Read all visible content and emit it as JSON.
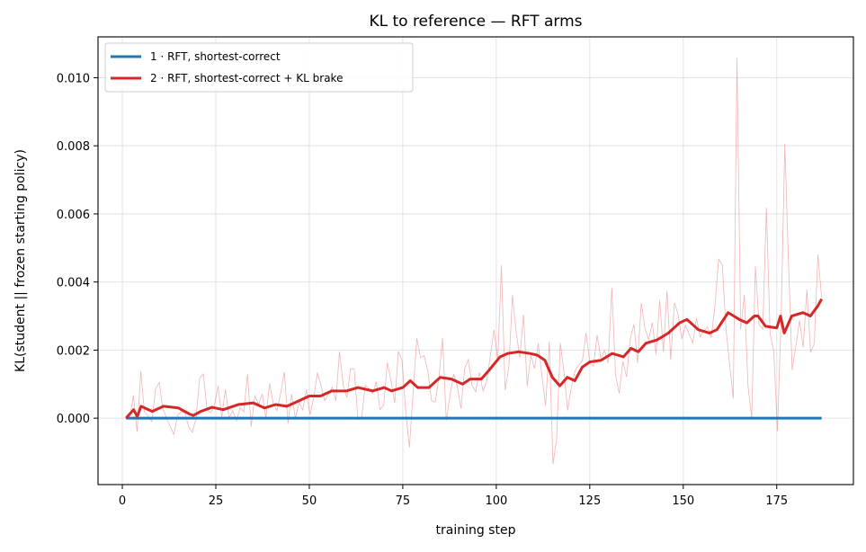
{
  "chart_data": {
    "type": "line",
    "title": "KL to reference — RFT arms",
    "xlabel": "training step",
    "ylabel": "KL(student || frozen starting policy)",
    "xlim": [
      -6.5,
      195.5
    ],
    "ylim": [
      -0.00195,
      0.0112
    ],
    "xticks": [
      0,
      25,
      50,
      75,
      100,
      125,
      150,
      175
    ],
    "xtick_labels": [
      "0",
      "25",
      "50",
      "75",
      "100",
      "125",
      "150",
      "175"
    ],
    "yticks": [
      0.0,
      0.002,
      0.004,
      0.006,
      0.008,
      0.01
    ],
    "ytick_labels": [
      "0.000",
      "0.002",
      "0.004",
      "0.006",
      "0.008",
      "0.010"
    ],
    "grid": true,
    "legend_position": "top-left",
    "series": [
      {
        "name": "1 · RFT, shortest-correct",
        "color": "#1f77b4",
        "x_start": 1,
        "x_end": 187,
        "values": [
          0,
          0
        ]
      },
      {
        "name": "2 · RFT, shortest-correct + KL brake",
        "color": "#d62728",
        "raw_color": "#d62728",
        "x_start": 1,
        "x_end": 187,
        "smoothed_knots": [
          [
            1,
            0.0
          ],
          [
            3,
            0.00025
          ],
          [
            4,
            5e-05
          ],
          [
            5,
            0.00035
          ],
          [
            8,
            0.0002
          ],
          [
            11,
            0.00035
          ],
          [
            15,
            0.0003
          ],
          [
            18,
            0.00012
          ],
          [
            19,
            8e-05
          ],
          [
            21,
            0.0002
          ],
          [
            24,
            0.00032
          ],
          [
            27,
            0.00025
          ],
          [
            31,
            0.0004
          ],
          [
            35,
            0.00045
          ],
          [
            38,
            0.0003
          ],
          [
            41,
            0.0004
          ],
          [
            44,
            0.00035
          ],
          [
            47,
            0.0005
          ],
          [
            50,
            0.00065
          ],
          [
            53,
            0.00065
          ],
          [
            56,
            0.0008
          ],
          [
            60,
            0.0008
          ],
          [
            63,
            0.0009
          ],
          [
            67,
            0.0008
          ],
          [
            70,
            0.0009
          ],
          [
            72,
            0.0008
          ],
          [
            75,
            0.0009
          ],
          [
            77,
            0.0011
          ],
          [
            79,
            0.0009
          ],
          [
            82,
            0.0009
          ],
          [
            85,
            0.0012
          ],
          [
            88,
            0.00115
          ],
          [
            91,
            0.001
          ],
          [
            93,
            0.00115
          ],
          [
            96,
            0.00115
          ],
          [
            98,
            0.0014
          ],
          [
            101,
            0.0018
          ],
          [
            103,
            0.0019
          ],
          [
            106,
            0.00195
          ],
          [
            109,
            0.0019
          ],
          [
            111,
            0.00185
          ],
          [
            113,
            0.0017
          ],
          [
            115,
            0.0012
          ],
          [
            117,
            0.00095
          ],
          [
            119,
            0.0012
          ],
          [
            121,
            0.0011
          ],
          [
            123,
            0.0015
          ],
          [
            125,
            0.00165
          ],
          [
            128,
            0.0017
          ],
          [
            131,
            0.0019
          ],
          [
            134,
            0.0018
          ],
          [
            136,
            0.00205
          ],
          [
            138,
            0.00195
          ],
          [
            140,
            0.0022
          ],
          [
            143,
            0.0023
          ],
          [
            146,
            0.0025
          ],
          [
            149,
            0.0028
          ],
          [
            151,
            0.0029
          ],
          [
            154,
            0.0026
          ],
          [
            157,
            0.0025
          ],
          [
            159,
            0.0026
          ],
          [
            162,
            0.0031
          ],
          [
            165,
            0.0029
          ],
          [
            167,
            0.0028
          ],
          [
            169,
            0.003
          ],
          [
            170,
            0.003
          ],
          [
            172,
            0.0027
          ],
          [
            175,
            0.00265
          ],
          [
            176,
            0.003
          ],
          [
            177,
            0.0025
          ],
          [
            179,
            0.003
          ],
          [
            182,
            0.0031
          ],
          [
            184,
            0.003
          ],
          [
            186,
            0.0033
          ],
          [
            187,
            0.0035
          ]
        ],
        "raw_values": [
          0.0,
          0.0,
          0.00067,
          -0.0004,
          0.00138,
          0.00018,
          6e-05,
          -0.0001,
          0.00086,
          0.00105,
          0.00027,
          0.0,
          -0.00025,
          -0.00048,
          9e-05,
          0.00019,
          0.00016,
          -0.00025,
          -0.00042,
          0.0,
          0.00118,
          0.0013,
          0.00024,
          0.00016,
          0.00038,
          0.00094,
          4e-05,
          0.00085,
          0.0,
          0.00022,
          -8e-05,
          0.00032,
          0.00019,
          0.0013,
          -0.00025,
          0.00066,
          0.0004,
          0.00071,
          1e-05,
          0.00102,
          0.00043,
          0.00022,
          0.00072,
          0.00136,
          -0.00016,
          0.00071,
          0.0,
          0.00046,
          0.00024,
          0.00084,
          0.0001,
          0.00062,
          0.00134,
          0.00095,
          0.00051,
          0.00072,
          0.00091,
          0.00052,
          0.00195,
          0.00098,
          0.0006,
          0.00146,
          0.00144,
          -4e-05,
          0.0,
          0.00097,
          0.00087,
          0.00073,
          0.00107,
          0.00025,
          0.00038,
          0.00163,
          0.0011,
          0.00045,
          0.00196,
          0.00169,
          0.00019,
          -0.00086,
          0.00077,
          0.00235,
          0.00178,
          0.00184,
          0.00138,
          0.00052,
          0.00047,
          0.00118,
          0.00236,
          -7e-05,
          0.00065,
          0.0013,
          0.00095,
          0.00028,
          0.00146,
          0.00172,
          0.00096,
          0.00078,
          0.00135,
          0.0008,
          0.00109,
          0.00185,
          0.00259,
          0.0017,
          0.00449,
          0.00082,
          0.00149,
          0.00361,
          0.00253,
          0.00177,
          0.00304,
          0.00094,
          0.00185,
          0.00146,
          0.00219,
          0.00125,
          0.00036,
          0.00224,
          -0.00135,
          -0.00061,
          0.00221,
          0.00135,
          0.00023,
          0.00091,
          0.00139,
          0.00156,
          0.00169,
          0.00251,
          0.00162,
          0.00153,
          0.00244,
          0.00177,
          0.00199,
          0.00162,
          0.00382,
          0.00127,
          0.00073,
          0.00167,
          0.00121,
          0.00232,
          0.00276,
          0.00162,
          0.00339,
          0.00264,
          0.0023,
          0.00281,
          0.00188,
          0.00348,
          0.00195,
          0.00375,
          0.00171,
          0.00339,
          0.00305,
          0.00232,
          0.00273,
          0.00246,
          0.00221,
          0.00294,
          0.00239,
          0.00256,
          0.00268,
          0.00237,
          0.00327,
          0.00467,
          0.00452,
          0.00265,
          0.00158,
          0.00058,
          0.01058,
          0.00261,
          0.00362,
          0.00095,
          0.0,
          0.00447,
          0.00275,
          0.00262,
          0.00618,
          0.00247,
          0.00197,
          -0.00038,
          0.00296,
          0.00806,
          0.00456,
          0.00141,
          0.00212,
          0.00287,
          0.00208,
          0.00378,
          0.00193,
          0.0022,
          0.00481,
          0.00353
        ]
      }
    ]
  }
}
